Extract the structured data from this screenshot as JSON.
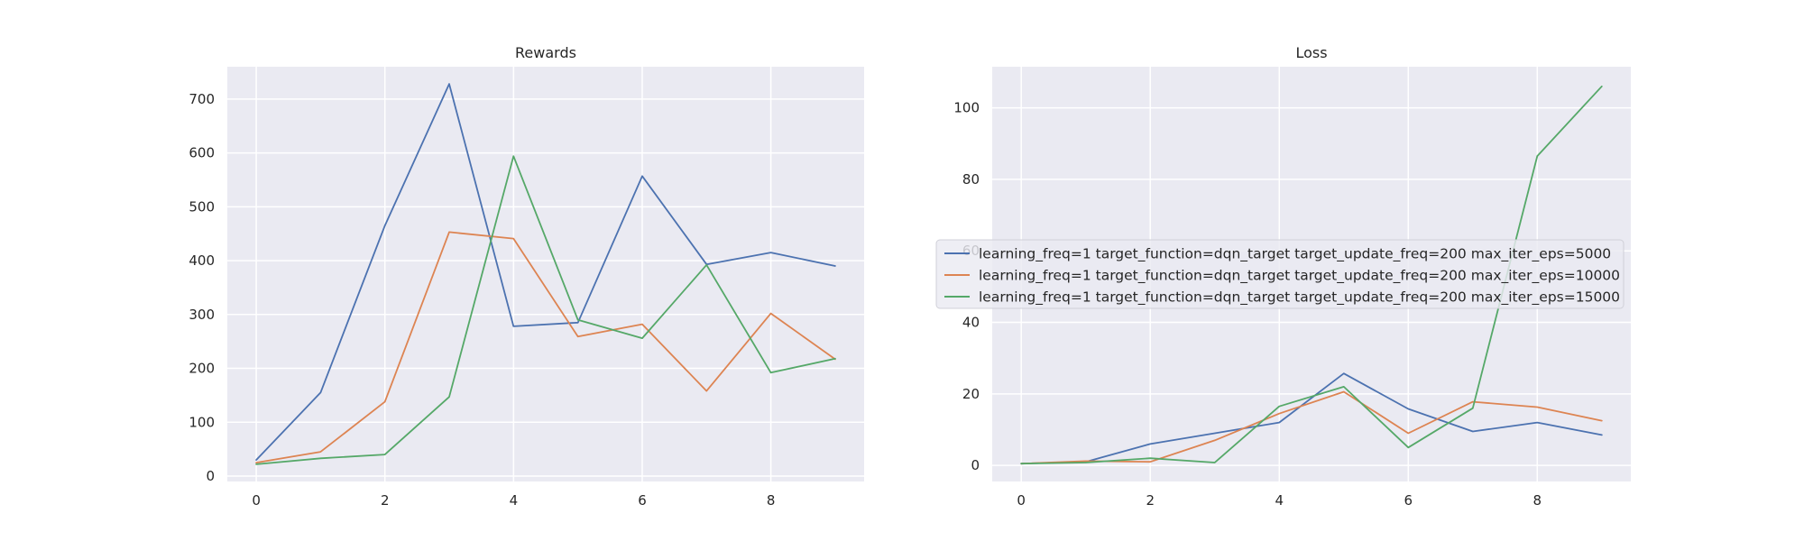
{
  "colors": {
    "background": "#eaeaf2",
    "grid": "#ffffff",
    "series": [
      "#4c72b0",
      "#dd8452",
      "#55a868"
    ]
  },
  "legend": {
    "placement": "center",
    "entries": [
      "learning_freq=1 target_function=dqn_target target_update_freq=200 max_iter_eps=5000",
      "learning_freq=1 target_function=dqn_target target_update_freq=200 max_iter_eps=10000",
      "learning_freq=1 target_function=dqn_target target_update_freq=200 max_iter_eps=15000"
    ]
  },
  "chart_data": [
    {
      "type": "line",
      "title": "Rewards",
      "xlabel": "",
      "ylabel": "",
      "grid": true,
      "x": [
        0,
        1,
        2,
        3,
        4,
        5,
        6,
        7,
        8,
        9
      ],
      "xlim": [
        -0.45,
        9.45
      ],
      "ylim": [
        -10,
        760
      ],
      "xticks": [
        0,
        2,
        4,
        6,
        8
      ],
      "yticks": [
        0,
        100,
        200,
        300,
        400,
        500,
        600,
        700
      ],
      "series": [
        {
          "values": [
            30,
            155,
            465,
            728,
            278,
            285,
            557,
            393,
            415,
            390
          ]
        },
        {
          "values": [
            25,
            45,
            138,
            453,
            441,
            259,
            282,
            158,
            302,
            217
          ]
        },
        {
          "values": [
            22,
            33,
            40,
            147,
            594,
            290,
            256,
            392,
            192,
            218
          ]
        }
      ]
    },
    {
      "type": "line",
      "title": "Loss",
      "xlabel": "",
      "ylabel": "",
      "grid": true,
      "x": [
        0,
        1,
        2,
        3,
        4,
        5,
        6,
        7,
        8,
        9
      ],
      "xlim": [
        -0.45,
        9.45
      ],
      "ylim": [
        -4.5,
        111.5
      ],
      "xticks": [
        0,
        2,
        4,
        6,
        8
      ],
      "yticks": [
        0,
        20,
        40,
        60,
        80,
        100
      ],
      "series": [
        {
          "values": [
            0.5,
            1,
            6,
            9,
            12,
            25.7,
            15.8,
            9.5,
            12,
            8.5
          ]
        },
        {
          "values": [
            0.5,
            1.2,
            1,
            7,
            14.5,
            20.6,
            9,
            17.8,
            16.3,
            12.5
          ]
        },
        {
          "values": [
            0.5,
            0.8,
            2,
            0.8,
            16.5,
            22,
            5,
            16,
            86.5,
            106
          ]
        }
      ]
    }
  ]
}
